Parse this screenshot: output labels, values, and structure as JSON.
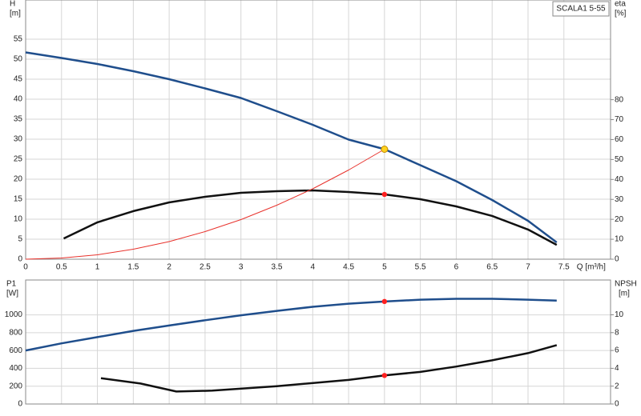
{
  "chart_data": [
    {
      "type": "line",
      "title": "SCALA1 5-55",
      "ylabel": "H",
      "yunit": "[m]",
      "y2label": "eta",
      "y2unit": "[%]",
      "xlabel": "Q [m³/h]",
      "xlim": [
        0,
        8.15
      ],
      "xticks": [
        0,
        0.5,
        1.0,
        1.5,
        2.0,
        2.5,
        3.0,
        3.5,
        4.0,
        4.5,
        5.0,
        5.5,
        6.0,
        6.5,
        7.0,
        7.5
      ],
      "ylim": [
        0,
        64.8
      ],
      "yticks": [
        0,
        5,
        10,
        15,
        20,
        25,
        30,
        35,
        40,
        45,
        50,
        55
      ],
      "y2lim": [
        0,
        130
      ],
      "y2ticks": [
        0,
        10,
        20,
        30,
        40,
        50,
        60,
        70,
        80
      ],
      "grid": true,
      "series": [
        {
          "color": "#1f4e8c",
          "line_width": 2.5,
          "axis": "y",
          "x": [
            0,
            0.5,
            1,
            1.5,
            2,
            2.5,
            3,
            3.5,
            4,
            4.5,
            5,
            5.5,
            6,
            6.5,
            7,
            7.4
          ],
          "values": [
            51.7,
            50.3,
            48.8,
            47,
            45,
            42.7,
            40.3,
            37,
            33.6,
            29.9,
            27.5,
            23.5,
            19.5,
            14.8,
            9.6,
            4.2
          ]
        },
        {
          "color": "#111111",
          "line_width": 2.5,
          "axis": "y2",
          "x": [
            0.53,
            1,
            1.5,
            2,
            2.5,
            3,
            3.5,
            4,
            4.5,
            5,
            5.5,
            6,
            6.5,
            7,
            7.4
          ],
          "values": [
            10.4,
            18.5,
            24.1,
            28.5,
            31.3,
            33.3,
            34.1,
            34.5,
            33.7,
            32.5,
            30.1,
            26.5,
            21.7,
            14.9,
            7.2
          ]
        },
        {
          "color": "#e8322c",
          "line_width": 1,
          "axis": "y",
          "x": [
            0,
            0.5,
            1,
            1.5,
            2,
            2.5,
            3,
            3.5,
            4,
            4.5,
            5
          ],
          "values": [
            0,
            0.3,
            1.1,
            2.5,
            4.4,
            6.9,
            9.9,
            13.5,
            17.6,
            22.3,
            27.5
          ]
        }
      ],
      "markers": [
        {
          "x": 5,
          "y": 27.5,
          "axis": "y",
          "color": "#ffd21f"
        },
        {
          "x": 5,
          "y": 32.5,
          "axis": "y2",
          "color": "#ff2020"
        }
      ]
    },
    {
      "type": "line",
      "ylabel": "P1",
      "yunit": "[W]",
      "y2label": "NPSH",
      "y2unit": "[m]",
      "xlim": [
        0,
        8.15
      ],
      "ylim": [
        0,
        1391
      ],
      "yticks": [
        0,
        200,
        400,
        600,
        800,
        1000
      ],
      "y2lim": [
        0,
        13.9
      ],
      "y2ticks": [
        0,
        2,
        4,
        6,
        8,
        10
      ],
      "grid": true,
      "series": [
        {
          "color": "#1f4e8c",
          "line_width": 2.5,
          "axis": "y",
          "x": [
            0,
            0.5,
            1,
            1.5,
            2,
            2.5,
            3,
            3.5,
            4,
            4.5,
            5,
            5.5,
            6,
            6.5,
            7,
            7.4
          ],
          "values": [
            600,
            680,
            750,
            820,
            880,
            940,
            995,
            1045,
            1090,
            1125,
            1150,
            1170,
            1180,
            1180,
            1170,
            1160
          ]
        },
        {
          "color": "#111111",
          "line_width": 2.5,
          "axis": "y2",
          "x": [
            1.05,
            1.6,
            2.1,
            2.6,
            3.5,
            4.5,
            5,
            5.5,
            6,
            6.5,
            7,
            7.4
          ],
          "values": [
            2.9,
            2.3,
            1.4,
            1.5,
            2.0,
            2.7,
            3.2,
            3.6,
            4.2,
            4.9,
            5.7,
            6.6
          ]
        }
      ],
      "markers": [
        {
          "x": 5,
          "y": 1150,
          "axis": "y",
          "color": "#ff2020"
        },
        {
          "x": 5,
          "y": 3.2,
          "axis": "y2",
          "color": "#ff2020"
        }
      ]
    }
  ]
}
